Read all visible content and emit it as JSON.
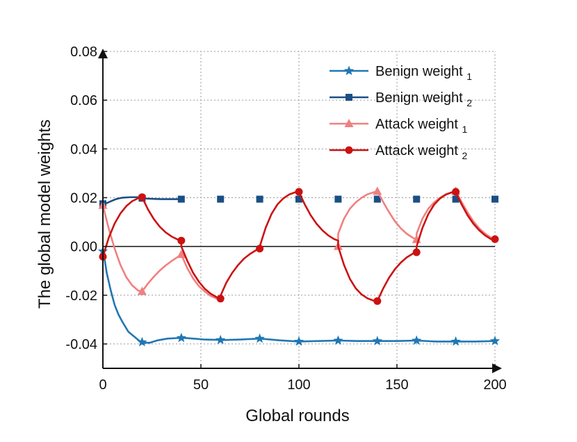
{
  "chart_data": {
    "type": "line",
    "xlabel": "Global rounds",
    "ylabel": "The global model weights",
    "xlim": [
      0,
      200
    ],
    "ylim": [
      -0.05,
      0.08
    ],
    "xticks": [
      0,
      50,
      100,
      150,
      200
    ],
    "xtick_labels": [
      "0",
      "50",
      "100",
      "150",
      "200"
    ],
    "yticks": [
      -0.04,
      -0.02,
      0.0,
      0.02,
      0.04,
      0.06,
      0.08
    ],
    "ytick_labels": [
      "-0.04",
      "-0.02",
      "0.00",
      "0.02",
      "0.04",
      "0.06",
      "0.08"
    ],
    "grid": "dotted",
    "legend_position": "top-right",
    "reference_line_y": 0.0,
    "series": [
      {
        "name": "Benign weight",
        "subscript": "1",
        "color": "#1f77b4",
        "marker": "star",
        "x": [
          0,
          1,
          2,
          4,
          6,
          8,
          10,
          13,
          16,
          19,
          21,
          24,
          28,
          33,
          38,
          41,
          46,
          52,
          58,
          61,
          70,
          80,
          90,
          100,
          110,
          120,
          130,
          140,
          150,
          160,
          170,
          180,
          190,
          200
        ],
        "y": [
          -0.002,
          -0.006,
          -0.011,
          -0.018,
          -0.024,
          -0.028,
          -0.031,
          -0.035,
          -0.037,
          -0.039,
          -0.0395,
          -0.0395,
          -0.0385,
          -0.0378,
          -0.0376,
          -0.0375,
          -0.0378,
          -0.0382,
          -0.0383,
          -0.0384,
          -0.0382,
          -0.0378,
          -0.0385,
          -0.039,
          -0.0388,
          -0.0386,
          -0.0388,
          -0.0388,
          -0.0388,
          -0.0386,
          -0.039,
          -0.039,
          -0.039,
          -0.0388
        ],
        "marker_x": [
          0,
          20,
          40,
          60,
          80,
          100,
          120,
          140,
          160,
          180,
          200
        ]
      },
      {
        "name": "Benign weight",
        "subscript": "2",
        "color": "#1a4f85",
        "marker": "square",
        "x": [
          0,
          2,
          4,
          6,
          8,
          10,
          14,
          18,
          20,
          23,
          26,
          30,
          40,
          60,
          80,
          100,
          120,
          140,
          160,
          180,
          200
        ],
        "y": [
          0.0175,
          0.0178,
          0.0185,
          0.0192,
          0.0197,
          0.02,
          0.0202,
          0.0202,
          0.0198,
          0.0196,
          0.0195,
          0.0194,
          0.0194,
          0.0194,
          0.0194,
          0.0194,
          0.0194,
          0.0194,
          0.0194,
          0.0194,
          0.0194
        ],
        "marker_x": [
          0,
          20,
          40,
          60,
          80,
          100,
          120,
          140,
          160,
          180,
          200
        ]
      },
      {
        "name": "Attack weight",
        "subscript": "1",
        "color": "#f08080",
        "marker": "triangle",
        "x": [
          0,
          3,
          6,
          9,
          12,
          15,
          18,
          20,
          23,
          26,
          29,
          32,
          35,
          38,
          40,
          40.01,
          43,
          46,
          49,
          52,
          55,
          58,
          60,
          120,
          120.01,
          123,
          126,
          129,
          132,
          135,
          138,
          140,
          143,
          146,
          149,
          152,
          155,
          158,
          160,
          160.01,
          163,
          166,
          169,
          172,
          175,
          178,
          180,
          183,
          186,
          189,
          192,
          195,
          198,
          200
        ],
        "y": [
          0.0168,
          0.0073,
          -0.0009,
          -0.0077,
          -0.0127,
          -0.016,
          -0.0181,
          -0.0185,
          -0.0152,
          -0.0124,
          -0.0099,
          -0.0078,
          -0.006,
          -0.0044,
          -0.0033,
          -0.0033,
          -0.0088,
          -0.0131,
          -0.0163,
          -0.0185,
          -0.0203,
          -0.0214,
          -0.0218,
          0.0,
          0.0052,
          0.0114,
          0.0155,
          0.0181,
          0.02,
          0.0214,
          0.0222,
          0.0226,
          0.0182,
          0.014,
          0.0103,
          0.0074,
          0.0052,
          0.0036,
          0.0028,
          0.0052,
          0.0114,
          0.0155,
          0.0181,
          0.02,
          0.0214,
          0.0222,
          0.0226,
          0.0182,
          0.014,
          0.0103,
          0.0074,
          0.0052,
          0.0036,
          0.0032
        ],
        "marker_x": [
          0,
          20,
          40,
          120,
          140,
          160,
          180
        ]
      },
      {
        "name": "Attack weight",
        "subscript": "2",
        "color": "#cc1111",
        "marker": "circle",
        "x": [
          0,
          3,
          6,
          9,
          12,
          15,
          18,
          20,
          23,
          26,
          29,
          32,
          35,
          38,
          40,
          40.01,
          43,
          46,
          49,
          52,
          55,
          58,
          60,
          60.01,
          63,
          66,
          69,
          72,
          75,
          78,
          80,
          80.01,
          83,
          86,
          89,
          92,
          95,
          98,
          100,
          103,
          106,
          109,
          112,
          115,
          118,
          120,
          120.01,
          123,
          126,
          129,
          132,
          135,
          138,
          140,
          143,
          146,
          149,
          152,
          155,
          158,
          160,
          160.01,
          163,
          166,
          169,
          172,
          175,
          178,
          180,
          183,
          186,
          189,
          192,
          195,
          198,
          200
        ],
        "y": [
          -0.0042,
          0.0036,
          0.0094,
          0.0136,
          0.0166,
          0.0186,
          0.0198,
          0.0202,
          0.0152,
          0.0112,
          0.0081,
          0.0058,
          0.0041,
          0.0029,
          0.0024,
          0.0,
          -0.0058,
          -0.0108,
          -0.0145,
          -0.0174,
          -0.0194,
          -0.0208,
          -0.0214,
          -0.0202,
          -0.0148,
          -0.0108,
          -0.0076,
          -0.005,
          -0.0031,
          -0.0016,
          -0.0009,
          0.0,
          0.0076,
          0.0133,
          0.0172,
          0.0197,
          0.0213,
          0.0222,
          0.0224,
          0.0172,
          0.0128,
          0.0093,
          0.0066,
          0.0045,
          0.003,
          0.0024,
          0.0,
          -0.0076,
          -0.0133,
          -0.0172,
          -0.0197,
          -0.0213,
          -0.0222,
          -0.0224,
          -0.0172,
          -0.0128,
          -0.0093,
          -0.0066,
          -0.0045,
          -0.003,
          -0.0024,
          0.0,
          0.0076,
          0.0133,
          0.0172,
          0.0197,
          0.0213,
          0.0222,
          0.0224,
          0.0172,
          0.0128,
          0.0093,
          0.0066,
          0.0045,
          0.003,
          0.003
        ],
        "marker_x": [
          0,
          20,
          40,
          60,
          80,
          100,
          140,
          160,
          180,
          200
        ]
      }
    ]
  }
}
